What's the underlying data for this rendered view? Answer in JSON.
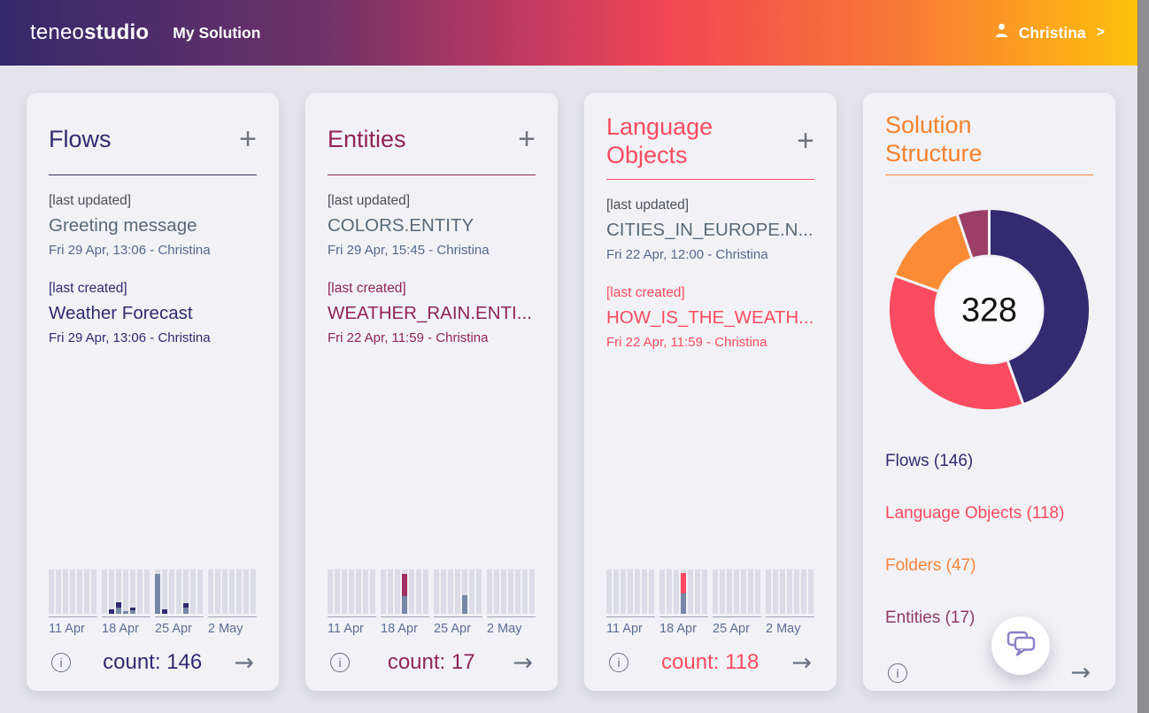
{
  "header": {
    "logo_light": "teneo",
    "logo_bold": "studio",
    "title": "My Solution",
    "user_name": "Christina",
    "user_chevron": ">"
  },
  "palette": {
    "slate_bar": "#7688a6",
    "stripe_bg": "#dcdce6",
    "header_gradient": [
      "#34296b",
      "#6e3169",
      "#c23a60",
      "#f24653",
      "#f97b35",
      "#fdc40a"
    ],
    "donut_hole": "#fbfbfd"
  },
  "cards": [
    {
      "key": "flows",
      "title": "Flows",
      "accent": "#312a70",
      "chart_accent": "#312a70",
      "add_label": "+",
      "last_updated": {
        "label": "[last updated]",
        "name": "Greeting message",
        "meta": "Fri 29 Apr, 13:06 - Christina"
      },
      "last_created": {
        "label": "[last created]",
        "name": "Weather Forecast",
        "meta": "Fri 29 Apr, 13:06 - Christina"
      },
      "count_label": "count: 146",
      "info_glyph": "i",
      "arrow_glyph": "→",
      "chart": {
        "weeks": [
          {
            "label": "11 Apr",
            "bars": []
          },
          {
            "label": "18 Apr",
            "bars": [
              {
                "slot": 2,
                "segments": [
                  {
                    "color": "accent",
                    "pct": 10
                  }
                ]
              },
              {
                "slot": 3,
                "segments": [
                  {
                    "color": "slate",
                    "pct": 14
                  },
                  {
                    "color": "accent",
                    "pct": 12
                  }
                ]
              },
              {
                "slot": 4,
                "segments": [
                  {
                    "color": "slate",
                    "pct": 7
                  }
                ]
              },
              {
                "slot": 5,
                "segments": [
                  {
                    "color": "slate",
                    "pct": 8
                  },
                  {
                    "color": "accent",
                    "pct": 6
                  }
                ]
              }
            ]
          },
          {
            "label": "25 Apr",
            "bars": [
              {
                "slot": 1,
                "segments": [
                  {
                    "color": "slate",
                    "pct": 90
                  }
                ]
              },
              {
                "slot": 2,
                "segments": [
                  {
                    "color": "accent",
                    "pct": 10
                  }
                ]
              },
              {
                "slot": 5,
                "segments": [
                  {
                    "color": "slate",
                    "pct": 14
                  },
                  {
                    "color": "accent",
                    "pct": 10
                  }
                ]
              }
            ]
          },
          {
            "label": "2 May",
            "bars": []
          }
        ]
      }
    },
    {
      "key": "entities",
      "title": "Entities",
      "accent": "#8f2455",
      "chart_accent": "#a23163",
      "add_label": "+",
      "last_updated": {
        "label": "[last updated]",
        "name": "COLORS.ENTITY",
        "meta": "Fri 29 Apr, 15:45 - Christina"
      },
      "last_created": {
        "label": "[last created]",
        "name": "WEATHER_RAIN.ENTI...",
        "meta": "Fri 22 Apr, 11:59 - Christina"
      },
      "count_label": "count: 17",
      "info_glyph": "i",
      "arrow_glyph": "→",
      "chart": {
        "weeks": [
          {
            "label": "11 Apr",
            "bars": []
          },
          {
            "label": "18 Apr",
            "bars": [
              {
                "slot": 4,
                "segments": [
                  {
                    "color": "slate",
                    "pct": 40
                  },
                  {
                    "color": "accent",
                    "pct": 50
                  }
                ]
              }
            ]
          },
          {
            "label": "25 Apr",
            "bars": [
              {
                "slot": 5,
                "segments": [
                  {
                    "color": "slate",
                    "pct": 43
                  }
                ]
              }
            ]
          },
          {
            "label": "2 May",
            "bars": []
          }
        ]
      }
    },
    {
      "key": "language-objects",
      "title": "Language Objects",
      "accent": "#fa4b5f",
      "chart_accent": "#fa4b5f",
      "add_label": "+",
      "last_updated": {
        "label": "[last updated]",
        "name": "CITIES_IN_EUROPE.N...",
        "meta": "Fri 22 Apr, 12:00 - Christina"
      },
      "last_created": {
        "label": "[last created]",
        "name": "HOW_IS_THE_WEATH...",
        "meta": "Fri 22 Apr, 11:59 - Christina"
      },
      "count_label": "count: 118",
      "info_glyph": "i",
      "arrow_glyph": "→",
      "chart": {
        "weeks": [
          {
            "label": "11 Apr",
            "bars": []
          },
          {
            "label": "18 Apr",
            "bars": [
              {
                "slot": 4,
                "segments": [
                  {
                    "color": "slate",
                    "pct": 46
                  },
                  {
                    "color": "accent",
                    "pct": 47
                  }
                ]
              }
            ]
          },
          {
            "label": "25 Apr",
            "bars": []
          },
          {
            "label": "2 May",
            "bars": []
          }
        ]
      }
    }
  ],
  "structure": {
    "title": "Solution Structure",
    "accent": "#f5822d",
    "total": "328",
    "legend": [
      {
        "label": "Flows (146)",
        "color": "#312a70"
      },
      {
        "label": "Language Objects (118)",
        "color": "#f9495f"
      },
      {
        "label": "Folders (47)",
        "color": "#f8853c"
      },
      {
        "label": "Entities (17)",
        "color": "#8f3a64"
      }
    ],
    "info_glyph": "i",
    "arrow_glyph": "→"
  },
  "chart_data": [
    {
      "type": "pie",
      "title": "Solution Structure",
      "labels": [
        "Flows",
        "Language Objects",
        "Folders",
        "Entities"
      ],
      "values": [
        146,
        118,
        47,
        17
      ],
      "colors": [
        "#332a70",
        "#fa4b60",
        "#fb8c35",
        "#9c3f66"
      ],
      "total": 328,
      "center_label": "328",
      "donut": true,
      "start_angle_deg": 0,
      "direction": "clockwise",
      "legend_position": "below"
    },
    {
      "type": "bar",
      "title": "Flows weekly activity (stacked mini bars, % of chart height)",
      "categories": [
        "11 Apr",
        "18 Apr",
        "25 Apr",
        "2 May"
      ],
      "series": [
        {
          "name": "slate",
          "values": [
            0,
            29,
            104,
            0
          ]
        },
        {
          "name": "navy",
          "values": [
            0,
            28,
            20,
            0
          ]
        }
      ]
    },
    {
      "type": "bar",
      "title": "Entities weekly activity (stacked mini bars, % of chart height)",
      "categories": [
        "11 Apr",
        "18 Apr",
        "25 Apr",
        "2 May"
      ],
      "series": [
        {
          "name": "slate",
          "values": [
            0,
            40,
            43,
            0
          ]
        },
        {
          "name": "burgundy",
          "values": [
            0,
            50,
            0,
            0
          ]
        }
      ]
    },
    {
      "type": "bar",
      "title": "Language Objects weekly activity (stacked mini bars, % of chart height)",
      "categories": [
        "11 Apr",
        "18 Apr",
        "25 Apr",
        "2 May"
      ],
      "series": [
        {
          "name": "slate",
          "values": [
            0,
            46,
            0,
            0
          ]
        },
        {
          "name": "red",
          "values": [
            0,
            47,
            0,
            0
          ]
        }
      ]
    }
  ]
}
